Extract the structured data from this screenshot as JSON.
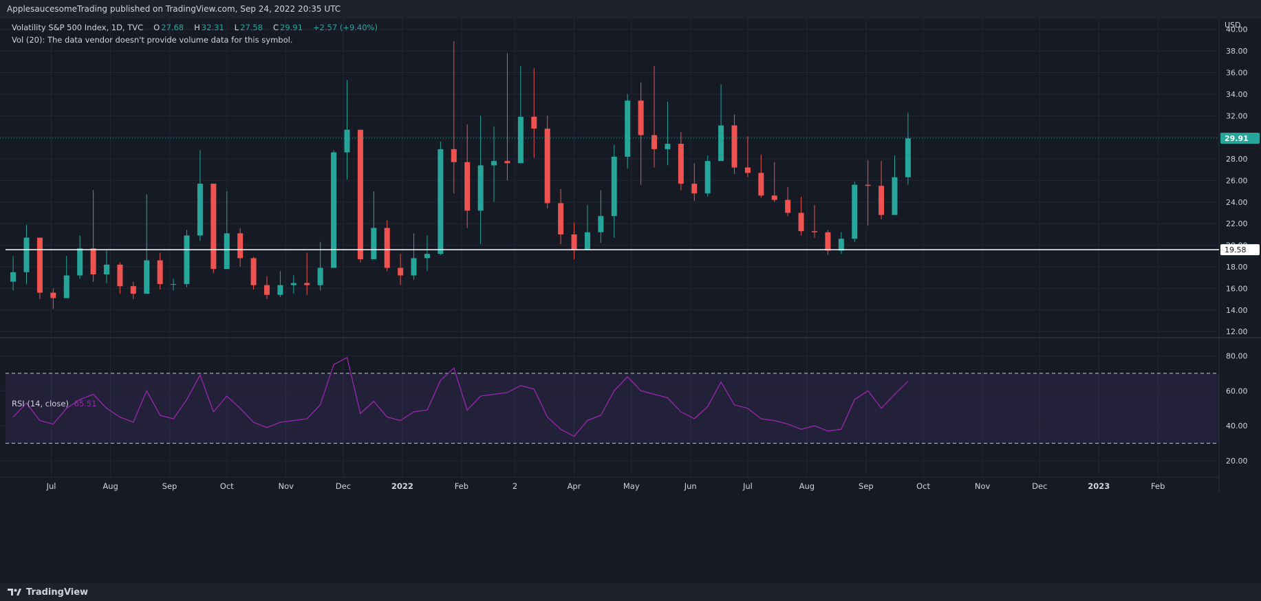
{
  "header": {
    "publish_line": "ApplesaucesomeTrading published on TradingView.com, Sep 24, 2022 20:35 UTC"
  },
  "legend": {
    "symbol": "Volatility S&P 500 Index, 1D, TVC",
    "open_label": "O",
    "open": "27.68",
    "high_label": "H",
    "high": "32.31",
    "low_label": "L",
    "low": "27.58",
    "close_label": "C",
    "close": "29.91",
    "change": "+2.57 (+9.40%)",
    "vol_note": "Vol (20): The data vendor doesn't provide volume data for this symbol."
  },
  "rsi_legend": {
    "label": "RSI (14, close)",
    "value": "65.51"
  },
  "footer": {
    "brand": "TradingView"
  },
  "colors": {
    "up": "#26a69a",
    "down": "#ef5350",
    "rsi": "#9c27b0",
    "background": "#161a25"
  },
  "chart_data": [
    {
      "type": "candlestick",
      "title": "Volatility S&P 500 Index, 1D, TVC",
      "currency_label": "USD",
      "y_ticks": [
        "40.00",
        "38.00",
        "36.00",
        "34.00",
        "32.00",
        "30.00",
        "28.00",
        "26.00",
        "24.00",
        "22.00",
        "20.00",
        "18.00",
        "16.00",
        "14.00",
        "12.00"
      ],
      "ylim": [
        11.5,
        41
      ],
      "x_tick_labels": [
        "Jul",
        "Aug",
        "Sep",
        "Oct",
        "Nov",
        "Dec",
        "2022",
        "Feb",
        "2",
        "Apr",
        "May",
        "Jun",
        "Jul",
        "Aug",
        "Sep",
        "Oct",
        "Nov",
        "Dec",
        "2023",
        "Feb"
      ],
      "last_price": 29.91,
      "last_price_label": "29.91",
      "horizontal_line": 19.58,
      "horizontal_line_label": "19.58",
      "close_points": [
        {
          "x": "2021-06-11",
          "close": 17.5,
          "high": 19.0,
          "low": 15.8
        },
        {
          "x": "2021-06-18",
          "close": 20.7,
          "high": 21.9,
          "low": 16.4
        },
        {
          "x": "2021-06-25",
          "close": 15.6,
          "high": 17.0,
          "low": 15.0
        },
        {
          "x": "2021-07-02",
          "close": 15.1,
          "high": 16.0,
          "low": 14.1
        },
        {
          "x": "2021-07-09",
          "close": 17.2,
          "high": 19.0,
          "low": 15.7
        },
        {
          "x": "2021-07-16",
          "close": 19.7,
          "high": 20.9,
          "low": 16.9
        },
        {
          "x": "2021-07-23",
          "close": 17.3,
          "high": 25.1,
          "low": 16.6
        },
        {
          "x": "2021-07-30",
          "close": 18.2,
          "high": 19.5,
          "low": 16.5
        },
        {
          "x": "2021-08-06",
          "close": 16.2,
          "high": 18.4,
          "low": 15.5
        },
        {
          "x": "2021-08-13",
          "close": 15.5,
          "high": 16.6,
          "low": 15.0
        },
        {
          "x": "2021-08-20",
          "close": 18.6,
          "high": 24.7,
          "low": 16.2
        },
        {
          "x": "2021-08-27",
          "close": 16.4,
          "high": 19.3,
          "low": 15.9
        },
        {
          "x": "2021-09-03",
          "close": 16.4,
          "high": 16.9,
          "low": 15.8
        },
        {
          "x": "2021-09-10",
          "close": 20.9,
          "high": 21.4,
          "low": 16.1
        },
        {
          "x": "2021-09-17",
          "close": 25.7,
          "high": 28.8,
          "low": 20.4
        },
        {
          "x": "2021-09-24",
          "close": 17.8,
          "high": 23.8,
          "low": 17.4
        },
        {
          "x": "2021-10-01",
          "close": 21.1,
          "high": 25.0,
          "low": 20.1
        },
        {
          "x": "2021-10-08",
          "close": 18.8,
          "high": 21.6,
          "low": 18.0
        },
        {
          "x": "2021-10-15",
          "close": 16.3,
          "high": 18.9,
          "low": 15.9
        },
        {
          "x": "2021-10-22",
          "close": 15.4,
          "high": 17.1,
          "low": 15.0
        },
        {
          "x": "2021-10-29",
          "close": 16.3,
          "high": 17.6,
          "low": 15.2
        },
        {
          "x": "2021-11-05",
          "close": 16.5,
          "high": 17.2,
          "low": 15.5
        },
        {
          "x": "2021-11-12",
          "close": 16.3,
          "high": 19.3,
          "low": 15.4
        },
        {
          "x": "2021-11-19",
          "close": 17.9,
          "high": 20.3,
          "low": 15.8
        },
        {
          "x": "2021-11-26",
          "close": 28.6,
          "high": 28.8,
          "low": 20.5
        },
        {
          "x": "2021-12-03",
          "close": 30.7,
          "high": 35.3,
          "low": 26.1
        },
        {
          "x": "2021-12-10",
          "close": 18.7,
          "high": 25.9,
          "low": 18.4
        },
        {
          "x": "2021-12-17",
          "close": 21.6,
          "high": 25.0,
          "low": 19.3
        },
        {
          "x": "2021-12-24",
          "close": 17.9,
          "high": 22.3,
          "low": 17.6
        },
        {
          "x": "2021-12-31",
          "close": 17.2,
          "high": 19.2,
          "low": 16.3
        },
        {
          "x": "2022-01-07",
          "close": 18.8,
          "high": 21.1,
          "low": 16.8
        },
        {
          "x": "2022-01-14",
          "close": 19.2,
          "high": 20.9,
          "low": 17.6
        },
        {
          "x": "2022-01-21",
          "close": 28.9,
          "high": 29.6,
          "low": 19.1
        },
        {
          "x": "2022-01-28",
          "close": 27.7,
          "high": 38.9,
          "low": 24.8
        },
        {
          "x": "2022-02-04",
          "close": 23.2,
          "high": 31.2,
          "low": 21.6
        },
        {
          "x": "2022-02-11",
          "close": 27.4,
          "high": 32.0,
          "low": 20.1
        },
        {
          "x": "2022-02-18",
          "close": 27.8,
          "high": 31.0,
          "low": 24.0
        },
        {
          "x": "2022-02-25",
          "close": 27.6,
          "high": 37.8,
          "low": 26.0
        },
        {
          "x": "2022-03-04",
          "close": 31.9,
          "high": 36.6,
          "low": 28.2
        },
        {
          "x": "2022-03-11",
          "close": 30.8,
          "high": 36.4,
          "low": 28.1
        },
        {
          "x": "2022-03-18",
          "close": 23.9,
          "high": 32.0,
          "low": 23.4
        },
        {
          "x": "2022-03-25",
          "close": 21.0,
          "high": 25.2,
          "low": 20.1
        },
        {
          "x": "2022-04-01",
          "close": 19.6,
          "high": 22.1,
          "low": 18.7
        },
        {
          "x": "2022-04-08",
          "close": 21.2,
          "high": 23.7,
          "low": 19.6
        },
        {
          "x": "2022-04-15",
          "close": 22.7,
          "high": 25.1,
          "low": 20.2
        },
        {
          "x": "2022-04-22",
          "close": 28.2,
          "high": 29.3,
          "low": 20.7
        },
        {
          "x": "2022-04-29",
          "close": 33.4,
          "high": 34.0,
          "low": 27.1
        },
        {
          "x": "2022-05-06",
          "close": 30.2,
          "high": 35.1,
          "low": 25.6
        },
        {
          "x": "2022-05-13",
          "close": 28.9,
          "high": 36.6,
          "low": 27.2
        },
        {
          "x": "2022-05-20",
          "close": 29.4,
          "high": 33.3,
          "low": 27.4
        },
        {
          "x": "2022-05-27",
          "close": 25.7,
          "high": 30.5,
          "low": 25.1
        },
        {
          "x": "2022-06-03",
          "close": 24.8,
          "high": 27.6,
          "low": 24.1
        },
        {
          "x": "2022-06-10",
          "close": 27.8,
          "high": 28.3,
          "low": 24.5
        },
        {
          "x": "2022-06-17",
          "close": 31.1,
          "high": 34.9,
          "low": 27.8
        },
        {
          "x": "2022-06-24",
          "close": 27.2,
          "high": 32.1,
          "low": 26.6
        },
        {
          "x": "2022-07-01",
          "close": 26.7,
          "high": 30.1,
          "low": 26.3
        },
        {
          "x": "2022-07-08",
          "close": 24.6,
          "high": 28.4,
          "low": 24.4
        },
        {
          "x": "2022-07-15",
          "close": 24.2,
          "high": 27.7,
          "low": 24.0
        },
        {
          "x": "2022-07-22",
          "close": 23.0,
          "high": 25.4,
          "low": 22.7
        },
        {
          "x": "2022-07-29",
          "close": 21.3,
          "high": 24.5,
          "low": 20.9
        },
        {
          "x": "2022-08-05",
          "close": 21.2,
          "high": 23.7,
          "low": 20.7
        },
        {
          "x": "2022-08-12",
          "close": 19.5,
          "high": 21.4,
          "low": 19.1
        },
        {
          "x": "2022-08-19",
          "close": 20.6,
          "high": 21.2,
          "low": 19.2
        },
        {
          "x": "2022-08-26",
          "close": 25.6,
          "high": 25.9,
          "low": 20.3
        },
        {
          "x": "2022-09-02",
          "close": 25.5,
          "high": 27.9,
          "low": 21.8
        },
        {
          "x": "2022-09-09",
          "close": 22.8,
          "high": 27.8,
          "low": 22.4
        },
        {
          "x": "2022-09-16",
          "close": 26.3,
          "high": 28.3,
          "low": 25.8
        },
        {
          "x": "2022-09-23",
          "close": 29.9,
          "high": 32.3,
          "low": 25.6
        }
      ]
    },
    {
      "type": "line",
      "title": "RSI (14, close)",
      "y_ticks": [
        "80.00",
        "60.00",
        "40.00",
        "20.00"
      ],
      "ylim": [
        11,
        90
      ],
      "bands": [
        30,
        70
      ],
      "series": [
        {
          "name": "RSI (14, close)",
          "points": [
            {
              "x": "2021-06-11",
              "y": 45
            },
            {
              "x": "2021-06-18",
              "y": 53
            },
            {
              "x": "2021-06-25",
              "y": 43
            },
            {
              "x": "2021-07-02",
              "y": 41
            },
            {
              "x": "2021-07-09",
              "y": 50
            },
            {
              "x": "2021-07-16",
              "y": 55
            },
            {
              "x": "2021-07-23",
              "y": 58
            },
            {
              "x": "2021-07-30",
              "y": 50
            },
            {
              "x": "2021-08-06",
              "y": 45
            },
            {
              "x": "2021-08-13",
              "y": 42
            },
            {
              "x": "2021-08-20",
              "y": 60
            },
            {
              "x": "2021-08-27",
              "y": 46
            },
            {
              "x": "2021-09-03",
              "y": 44
            },
            {
              "x": "2021-09-10",
              "y": 55
            },
            {
              "x": "2021-09-17",
              "y": 69
            },
            {
              "x": "2021-09-24",
              "y": 48
            },
            {
              "x": "2021-10-01",
              "y": 57
            },
            {
              "x": "2021-10-08",
              "y": 50
            },
            {
              "x": "2021-10-15",
              "y": 42
            },
            {
              "x": "2021-10-22",
              "y": 39
            },
            {
              "x": "2021-10-29",
              "y": 42
            },
            {
              "x": "2021-11-05",
              "y": 43
            },
            {
              "x": "2021-11-12",
              "y": 44
            },
            {
              "x": "2021-11-19",
              "y": 52
            },
            {
              "x": "2021-11-26",
              "y": 75
            },
            {
              "x": "2021-12-03",
              "y": 79
            },
            {
              "x": "2021-12-10",
              "y": 47
            },
            {
              "x": "2021-12-17",
              "y": 54
            },
            {
              "x": "2021-12-24",
              "y": 45
            },
            {
              "x": "2021-12-31",
              "y": 43
            },
            {
              "x": "2022-01-07",
              "y": 48
            },
            {
              "x": "2022-01-14",
              "y": 49
            },
            {
              "x": "2022-01-21",
              "y": 66
            },
            {
              "x": "2022-01-28",
              "y": 73
            },
            {
              "x": "2022-02-04",
              "y": 49
            },
            {
              "x": "2022-02-11",
              "y": 57
            },
            {
              "x": "2022-02-18",
              "y": 58
            },
            {
              "x": "2022-02-25",
              "y": 59
            },
            {
              "x": "2022-03-04",
              "y": 63
            },
            {
              "x": "2022-03-11",
              "y": 61
            },
            {
              "x": "2022-03-18",
              "y": 45
            },
            {
              "x": "2022-03-25",
              "y": 38
            },
            {
              "x": "2022-04-01",
              "y": 34
            },
            {
              "x": "2022-04-08",
              "y": 43
            },
            {
              "x": "2022-04-15",
              "y": 46
            },
            {
              "x": "2022-04-22",
              "y": 60
            },
            {
              "x": "2022-04-29",
              "y": 68
            },
            {
              "x": "2022-05-06",
              "y": 60
            },
            {
              "x": "2022-05-13",
              "y": 58
            },
            {
              "x": "2022-05-20",
              "y": 56
            },
            {
              "x": "2022-05-27",
              "y": 48
            },
            {
              "x": "2022-06-03",
              "y": 44
            },
            {
              "x": "2022-06-10",
              "y": 51
            },
            {
              "x": "2022-06-17",
              "y": 65
            },
            {
              "x": "2022-06-24",
              "y": 52
            },
            {
              "x": "2022-07-01",
              "y": 50
            },
            {
              "x": "2022-07-08",
              "y": 44
            },
            {
              "x": "2022-07-15",
              "y": 43
            },
            {
              "x": "2022-07-22",
              "y": 41
            },
            {
              "x": "2022-07-29",
              "y": 38
            },
            {
              "x": "2022-08-05",
              "y": 40
            },
            {
              "x": "2022-08-12",
              "y": 37
            },
            {
              "x": "2022-08-19",
              "y": 38
            },
            {
              "x": "2022-08-26",
              "y": 55
            },
            {
              "x": "2022-09-02",
              "y": 60
            },
            {
              "x": "2022-09-09",
              "y": 50
            },
            {
              "x": "2022-09-16",
              "y": 58
            },
            {
              "x": "2022-09-23",
              "y": 65.51
            }
          ]
        }
      ]
    }
  ]
}
